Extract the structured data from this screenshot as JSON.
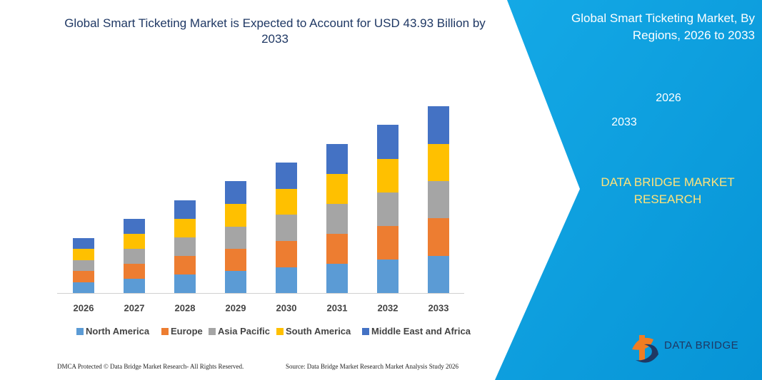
{
  "chart_data": {
    "type": "bar",
    "stacked": true,
    "title": "Global Smart Ticketing Market is Expected to Account for USD 43.93 Billion by 2033",
    "categories": [
      "2026",
      "2027",
      "2028",
      "2029",
      "2030",
      "2031",
      "2032",
      "2033"
    ],
    "series": [
      {
        "name": "North America",
        "color": "#5b9bd5",
        "values": [
          15,
          20,
          26,
          31,
          36,
          41,
          47,
          52
        ]
      },
      {
        "name": "Europe",
        "color": "#ed7d31",
        "values": [
          16,
          21,
          26,
          31,
          37,
          42,
          47,
          53
        ]
      },
      {
        "name": "Asia Pacific",
        "color": "#a5a5a5",
        "values": [
          15,
          21,
          26,
          31,
          37,
          42,
          47,
          52
        ]
      },
      {
        "name": "South America",
        "color": "#ffc000",
        "values": [
          16,
          21,
          26,
          32,
          36,
          42,
          47,
          52
        ]
      },
      {
        "name": "Middle East and Africa",
        "color": "#4472c4",
        "values": [
          15,
          21,
          26,
          32,
          37,
          42,
          48,
          53
        ]
      }
    ]
  },
  "panel": {
    "title": "Global Smart Ticketing Market, By Regions, 2026 to 2033",
    "hex_top": "2026",
    "hex_bottom": "2033",
    "brand": "DATA BRIDGE MARKET RESEARCH"
  },
  "footer": {
    "copyright": "DMCA Protected © Data Bridge Market Research- All Rights Reserved.",
    "source": "Source: Data Bridge Market Research  Market Analysis Study 2026",
    "logo": "DATA BRIDGE"
  }
}
